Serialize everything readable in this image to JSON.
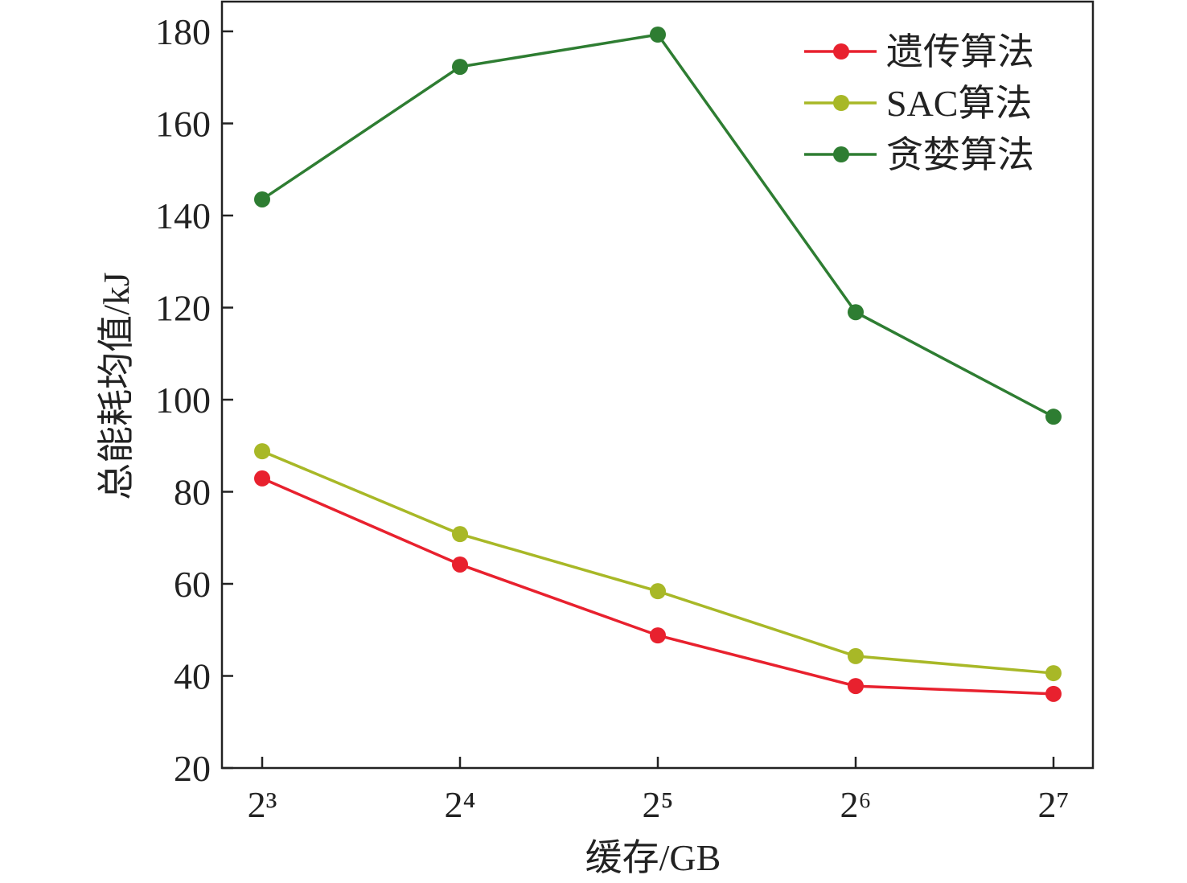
{
  "chart_data": {
    "type": "line",
    "title": "",
    "xlabel": "缓存/GB",
    "ylabel": "总能耗均值/kJ",
    "categories": [
      "2³",
      "2⁴",
      "2⁵",
      "2⁶",
      "2⁷"
    ],
    "ylim": [
      20,
      185
    ],
    "yticks": [
      20,
      40,
      60,
      80,
      100,
      120,
      140,
      160,
      180
    ],
    "grid": false,
    "legend_position": "top-right",
    "series": [
      {
        "name": "遗传算法",
        "color": "#e8212e",
        "values": [
          82.9,
          64.2,
          48.8,
          37.8,
          36.1
        ]
      },
      {
        "name": "SAC算法",
        "color": "#a8b827",
        "values": [
          88.8,
          70.8,
          58.4,
          44.3,
          40.6
        ]
      },
      {
        "name": "贪婪算法",
        "color": "#2e7d32",
        "values": [
          143.5,
          172.3,
          179.3,
          119.0,
          96.3
        ]
      }
    ]
  }
}
